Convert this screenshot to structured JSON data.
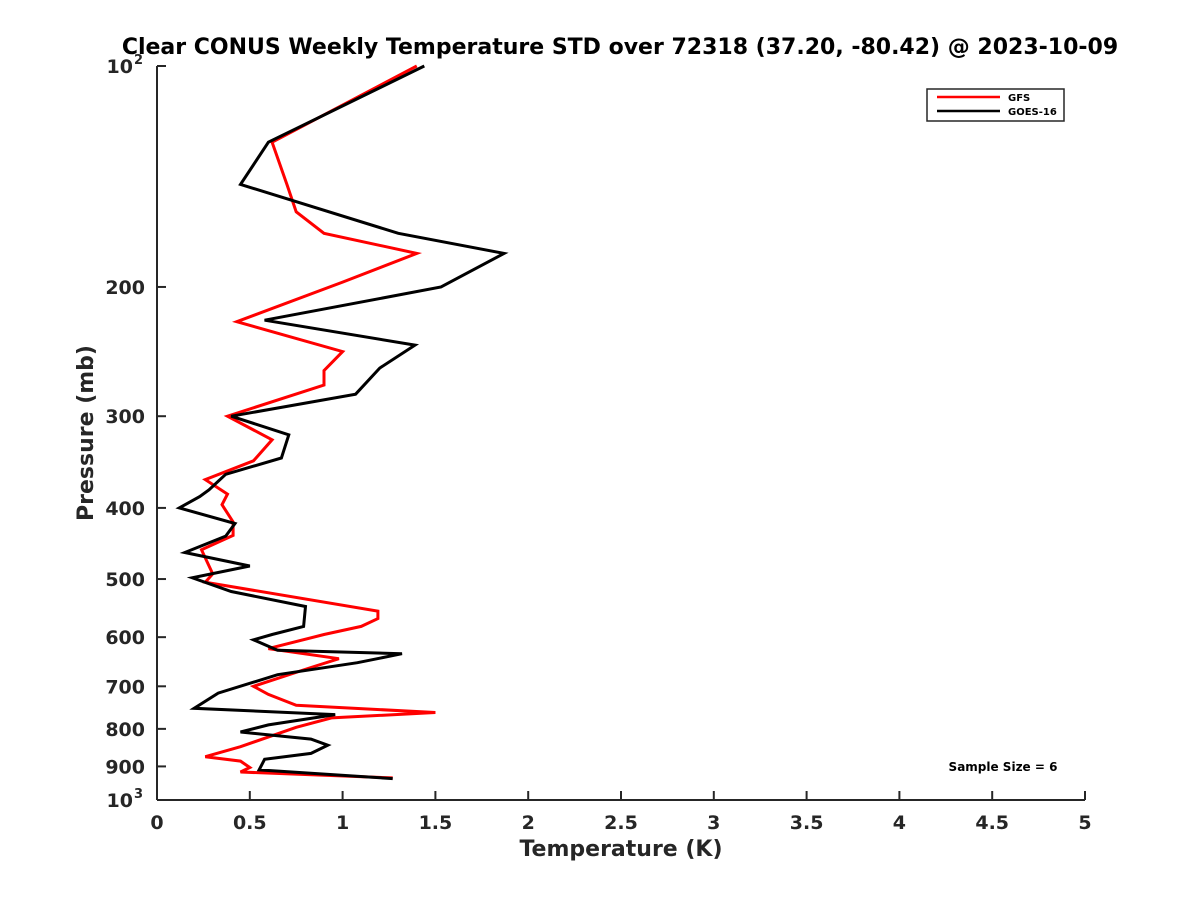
{
  "chart_data": {
    "type": "line",
    "title": "Clear CONUS Weekly Temperature STD over 72318 (37.20, -80.42) @ 2023-10-09",
    "xlabel": "Temperature (K)",
    "ylabel": "Pressure (mb)",
    "xlim": [
      0,
      5
    ],
    "ylim": [
      100,
      1000
    ],
    "y_scale": "log",
    "y_reversed": true,
    "x_ticks": [
      0,
      0.5,
      1,
      1.5,
      2,
      2.5,
      3,
      3.5,
      4,
      4.5,
      5
    ],
    "x_tick_labels": [
      "0",
      "0.5",
      "1",
      "1.5",
      "2",
      "2.5",
      "3",
      "3.5",
      "4",
      "4.5",
      "5"
    ],
    "y_ticks": [
      100,
      200,
      300,
      400,
      500,
      600,
      700,
      800,
      900,
      1000
    ],
    "y_tick_labels": [
      {
        "base": "10",
        "exp": "2"
      },
      {
        "base": "200",
        "exp": ""
      },
      {
        "base": "300",
        "exp": ""
      },
      {
        "base": "400",
        "exp": ""
      },
      {
        "base": "500",
        "exp": ""
      },
      {
        "base": "600",
        "exp": ""
      },
      {
        "base": "700",
        "exp": ""
      },
      {
        "base": "800",
        "exp": ""
      },
      {
        "base": "900",
        "exp": ""
      },
      {
        "base": "10",
        "exp": "3"
      }
    ],
    "grid": false,
    "legend_position": "top-right",
    "annotation": "Sample Size = 6",
    "series": [
      {
        "name": "GFS",
        "color": "#ff0000",
        "x": [
          1.4,
          0.62,
          0.7,
          0.75,
          0.9,
          1.4,
          1.0,
          0.43,
          1.0,
          0.9,
          0.9,
          0.38,
          0.62,
          0.52,
          0.26,
          0.38,
          0.35,
          0.41,
          0.41,
          0.24,
          0.3,
          0.26,
          1.19,
          1.19,
          1.1,
          0.9,
          0.6,
          0.98,
          0.83,
          0.52,
          0.6,
          0.75,
          1.5,
          0.94,
          0.75,
          0.45,
          0.26,
          0.45,
          0.5,
          0.45,
          1.27
        ],
        "y": [
          100,
          127,
          145,
          158,
          169,
          180,
          197,
          223,
          245,
          260,
          272,
          300,
          323,
          345,
          366,
          383,
          396,
          418,
          436,
          456,
          492,
          505,
          553,
          566,
          580,
          595,
          622,
          642,
          660,
          700,
          718,
          743,
          760,
          773,
          796,
          846,
          873,
          885,
          903,
          916,
          933
        ]
      },
      {
        "name": "GOES-16",
        "color": "#000000",
        "x": [
          1.44,
          0.6,
          0.45,
          1.3,
          1.87,
          1.53,
          0.58,
          1.39,
          1.2,
          1.07,
          0.4,
          0.71,
          0.67,
          0.37,
          0.28,
          0.23,
          0.12,
          0.42,
          0.37,
          0.15,
          0.5,
          0.19,
          0.4,
          0.8,
          0.79,
          0.62,
          0.52,
          0.65,
          1.32,
          1.08,
          0.65,
          0.33,
          0.2,
          0.96,
          0.6,
          0.45,
          0.83,
          0.92,
          0.83,
          0.58,
          0.55,
          1.27
        ],
        "y": [
          100,
          127,
          145,
          169,
          180,
          200,
          222,
          240,
          258,
          280,
          300,
          318,
          342,
          360,
          378,
          386,
          400,
          420,
          437,
          460,
          480,
          498,
          520,
          545,
          580,
          595,
          605,
          625,
          632,
          650,
          675,
          715,
          750,
          765,
          790,
          808,
          826,
          842,
          864,
          880,
          910,
          935
        ]
      }
    ]
  }
}
